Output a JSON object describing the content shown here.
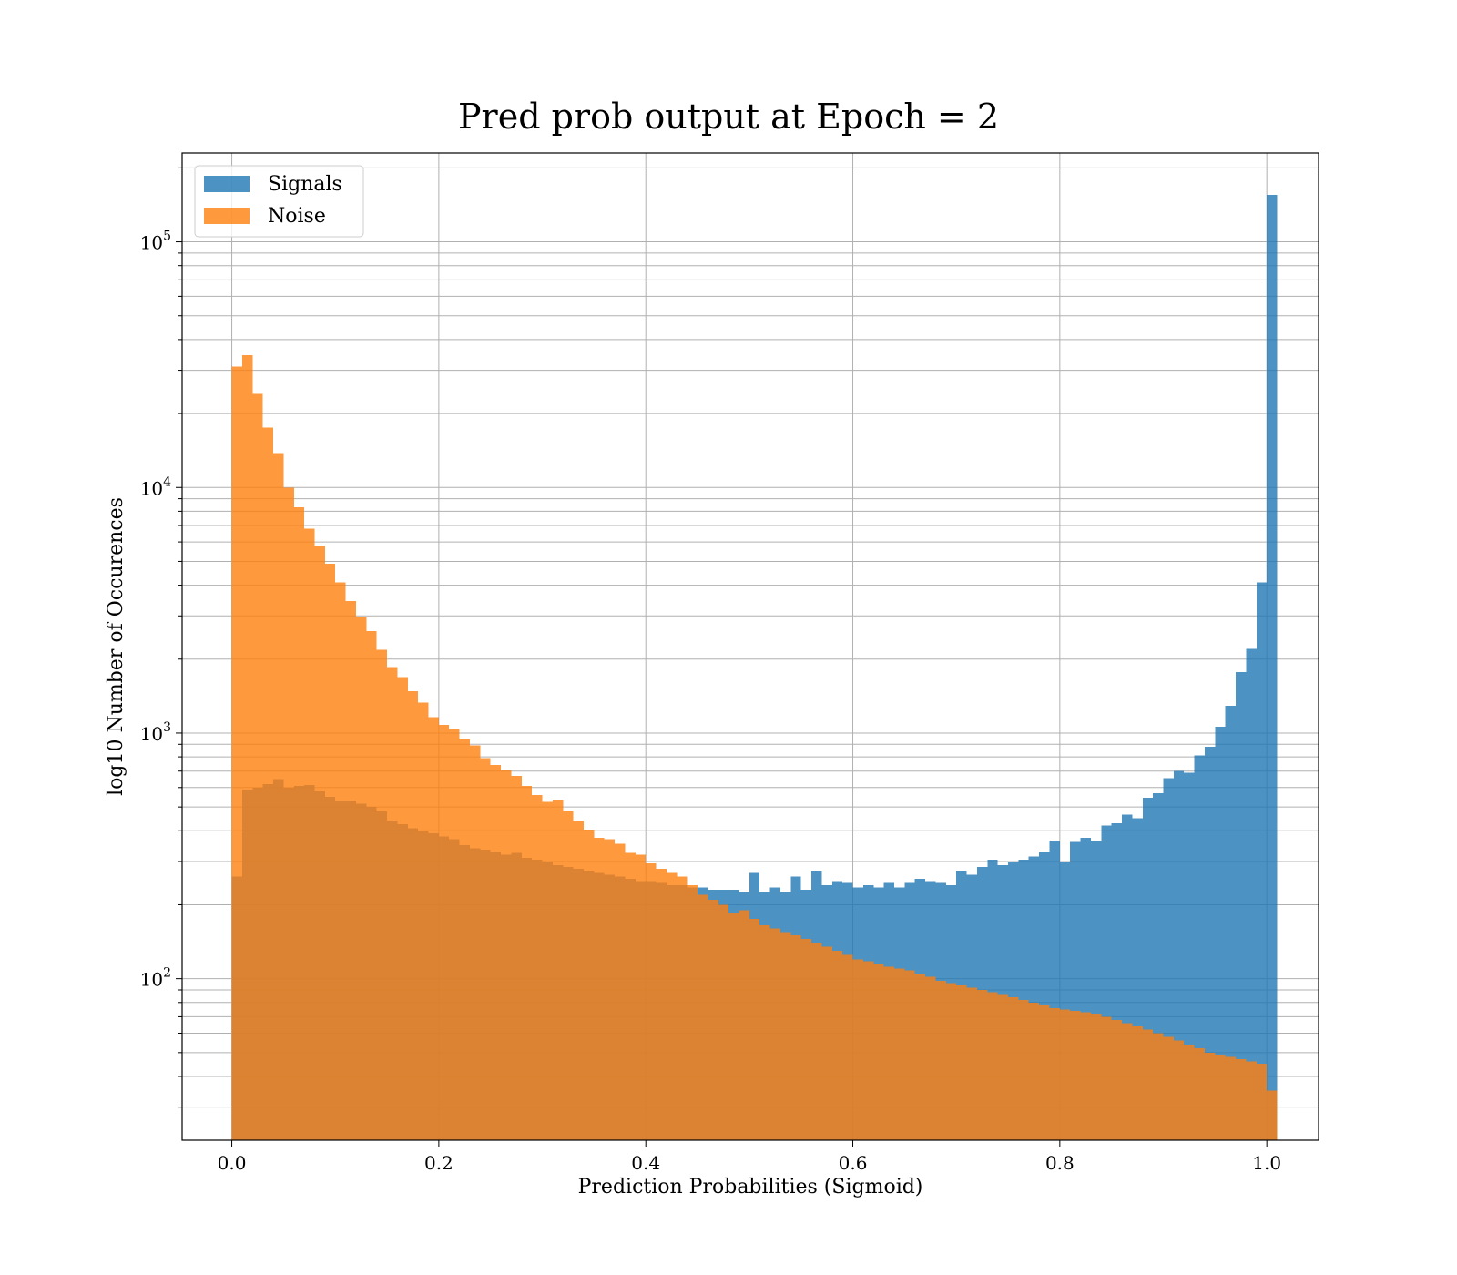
{
  "chart_data": {
    "type": "bar",
    "title": "Pred prob output at Epoch = 2",
    "xlabel": "Prediction Probabilities (Sigmoid)",
    "ylabel": "log10 Number of Occurences",
    "xlim": [
      -0.048,
      1.05
    ],
    "ylim": [
      22,
      230000
    ],
    "yscale": "log",
    "grid": true,
    "legend_position": "upper-left",
    "x_ticks": [
      0.0,
      0.2,
      0.4,
      0.6,
      0.8,
      1.0
    ],
    "x_tick_labels": [
      "0.0",
      "0.2",
      "0.4",
      "0.6",
      "0.8",
      "1.0"
    ],
    "y_ticks": [
      {
        "value": 100,
        "base": "10",
        "exp": "2"
      },
      {
        "value": 1000,
        "base": "10",
        "exp": "3"
      },
      {
        "value": 10000,
        "base": "10",
        "exp": "4"
      },
      {
        "value": 100000,
        "base": "10",
        "exp": "5"
      }
    ],
    "bin_start": 0.0,
    "bin_width": 0.01,
    "colors": {
      "signals": "#1f77b4",
      "noise": "#ff7f0e"
    },
    "alpha": 0.8,
    "series": [
      {
        "name": "Signals",
        "values": [
          260,
          590,
          600,
          620,
          650,
          600,
          610,
          615,
          580,
          550,
          530,
          530,
          515,
          500,
          480,
          440,
          425,
          410,
          400,
          390,
          380,
          370,
          350,
          340,
          335,
          330,
          320,
          325,
          310,
          305,
          300,
          290,
          285,
          280,
          275,
          270,
          265,
          260,
          255,
          250,
          250,
          245,
          240,
          240,
          235,
          235,
          230,
          230,
          230,
          225,
          270,
          225,
          235,
          225,
          260,
          230,
          275,
          240,
          250,
          245,
          235,
          240,
          235,
          245,
          235,
          245,
          255,
          250,
          245,
          240,
          275,
          265,
          285,
          305,
          290,
          300,
          305,
          315,
          330,
          365,
          300,
          360,
          375,
          365,
          420,
          430,
          465,
          450,
          545,
          570,
          655,
          700,
          690,
          810,
          880,
          1060,
          1290,
          1770,
          2200,
          4100,
          155000
        ]
      },
      {
        "name": "Noise",
        "values": [
          31000,
          34500,
          24000,
          17500,
          13800,
          10000,
          8300,
          6800,
          5800,
          4900,
          4100,
          3450,
          2980,
          2600,
          2180,
          1860,
          1690,
          1480,
          1330,
          1160,
          1080,
          1040,
          940,
          890,
          790,
          740,
          705,
          670,
          610,
          560,
          525,
          535,
          480,
          440,
          405,
          375,
          370,
          355,
          325,
          320,
          295,
          280,
          270,
          260,
          240,
          220,
          210,
          200,
          185,
          190,
          175,
          165,
          160,
          155,
          150,
          145,
          140,
          135,
          130,
          125,
          120,
          118,
          115,
          112,
          110,
          108,
          105,
          102,
          98,
          96,
          94,
          92,
          90,
          88,
          86,
          84,
          82,
          80,
          78,
          76,
          75,
          74,
          73,
          72,
          70,
          68,
          66,
          64,
          62,
          60,
          58,
          56,
          54,
          52,
          50,
          49,
          48,
          47,
          46,
          45,
          35
        ]
      }
    ]
  }
}
